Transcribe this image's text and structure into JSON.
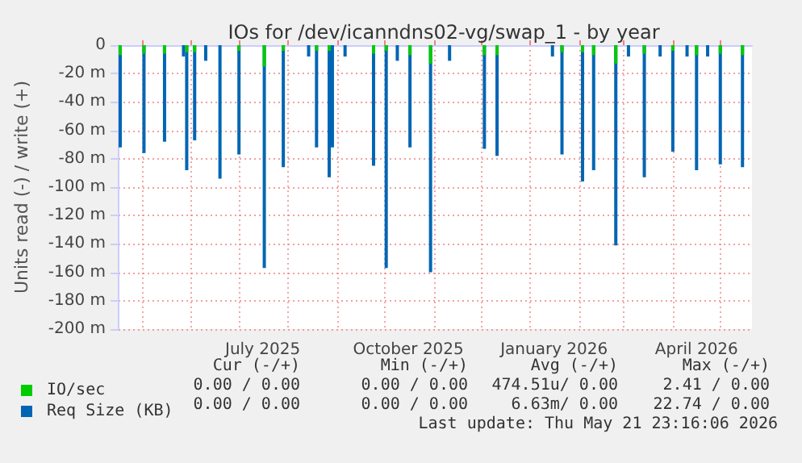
{
  "chart_data": {
    "type": "bar",
    "title": "IOs for /dev/icanndns02-vg/swap_1 - by year",
    "ylabel": "Units read (-) / write (+)",
    "series": [
      {
        "name": "Req Size (KB)",
        "color": "#0066b3",
        "x": [
          "2025-04-17",
          "2025-05-02",
          "2025-05-15",
          "2025-05-27",
          "2025-05-29",
          "2025-06-03",
          "2025-06-10",
          "2025-06-19",
          "2025-07-01",
          "2025-07-17",
          "2025-07-29",
          "2025-08-14",
          "2025-08-19",
          "2025-08-27",
          "2025-08-29",
          "2025-09-06",
          "2025-09-24",
          "2025-10-02",
          "2025-10-09",
          "2025-10-17",
          "2025-10-30",
          "2025-11-11",
          "2025-12-03",
          "2025-12-11",
          "2026-01-15",
          "2026-01-21",
          "2026-02-03",
          "2026-02-10",
          "2026-02-24",
          "2026-03-04",
          "2026-03-14",
          "2026-03-24",
          "2026-04-01",
          "2026-04-10",
          "2026-04-16",
          "2026-04-23",
          "2026-05-01",
          "2026-05-15"
        ],
        "values": [
          -72,
          -76,
          -68,
          -8,
          -88,
          -67,
          -11,
          -94,
          -77,
          -157,
          -86,
          -8,
          -72,
          -93,
          -72,
          -8,
          -85,
          -157,
          -11,
          -72,
          -160,
          -11,
          -73,
          -78,
          -8,
          -77,
          -96,
          -88,
          -141,
          -8,
          -93,
          -8,
          -75,
          -8,
          -88,
          -8,
          -84,
          -86
        ]
      },
      {
        "name": "IO/sec",
        "color": "#00cc00",
        "x": [
          "2025-04-17",
          "2025-05-02",
          "2025-05-15",
          "2025-05-29",
          "2025-06-03",
          "2025-07-01",
          "2025-07-17",
          "2025-07-29",
          "2025-08-19",
          "2025-08-27",
          "2025-09-24",
          "2025-10-02",
          "2025-10-17",
          "2025-10-30",
          "2025-12-03",
          "2025-12-11",
          "2026-01-21",
          "2026-02-03",
          "2026-02-10",
          "2026-02-24",
          "2026-03-14",
          "2026-04-01",
          "2026-04-16",
          "2026-05-01",
          "2026-05-15"
        ],
        "values": [
          -7,
          -6,
          -6,
          -5,
          -5,
          -4,
          -15,
          -4,
          -4,
          -4,
          -6,
          -4,
          -7,
          -13,
          -7,
          -7,
          -5,
          -5,
          -7,
          -13,
          -6,
          -4,
          -7,
          -6,
          -7
        ]
      }
    ],
    "xlim": [
      "2025-04-16",
      "2026-05-21"
    ],
    "xticks": [
      {
        "value": "2025-05-01",
        "label": null
      },
      {
        "value": "2025-06-01",
        "label": null
      },
      {
        "value": "2025-07-01",
        "label": null
      },
      {
        "value": "2025-07-16",
        "label": "July 2025"
      },
      {
        "value": "2025-08-01",
        "label": null
      },
      {
        "value": "2025-09-01",
        "label": null
      },
      {
        "value": "2025-10-01",
        "label": null
      },
      {
        "value": "2025-10-16",
        "label": "October 2025"
      },
      {
        "value": "2025-11-01",
        "label": null
      },
      {
        "value": "2025-12-01",
        "label": null
      },
      {
        "value": "2026-01-01",
        "label": null
      },
      {
        "value": "2026-01-16",
        "label": "January 2026"
      },
      {
        "value": "2026-02-01",
        "label": null
      },
      {
        "value": "2026-03-01",
        "label": null
      },
      {
        "value": "2026-04-01",
        "label": null
      },
      {
        "value": "2026-04-16",
        "label": "April 2026"
      },
      {
        "value": "2026-05-01",
        "label": null
      }
    ],
    "ylim": [
      -200,
      0
    ],
    "yticks": [
      {
        "value": -200,
        "label": "-200 m"
      },
      {
        "value": -180,
        "label": "-180 m"
      },
      {
        "value": -160,
        "label": "-160 m"
      },
      {
        "value": -140,
        "label": "-140 m"
      },
      {
        "value": -120,
        "label": "-120 m"
      },
      {
        "value": -100,
        "label": "-100 m"
      },
      {
        "value": -80,
        "label": "-80 m"
      },
      {
        "value": -60,
        "label": "-60 m"
      },
      {
        "value": -40,
        "label": "-40 m"
      },
      {
        "value": -20,
        "label": "-20 m"
      },
      0
    ],
    "grid": true,
    "legend": "bottom left",
    "annotations": [
      "Cur (-/+)",
      "Min (-/+)",
      "Avg (-/+)",
      "Max (-/+)",
      "0.00 / 0.00",
      "0.00 / 0.00",
      "474.51u/ 0.00",
      "2.41 / 0.00",
      "0.00 / 0.00",
      "0.00 / 0.00",
      "6.63m/ 0.00",
      "22.74 / 0.00",
      "Last update: Thu May 21 23:16:06 2026"
    ]
  }
}
